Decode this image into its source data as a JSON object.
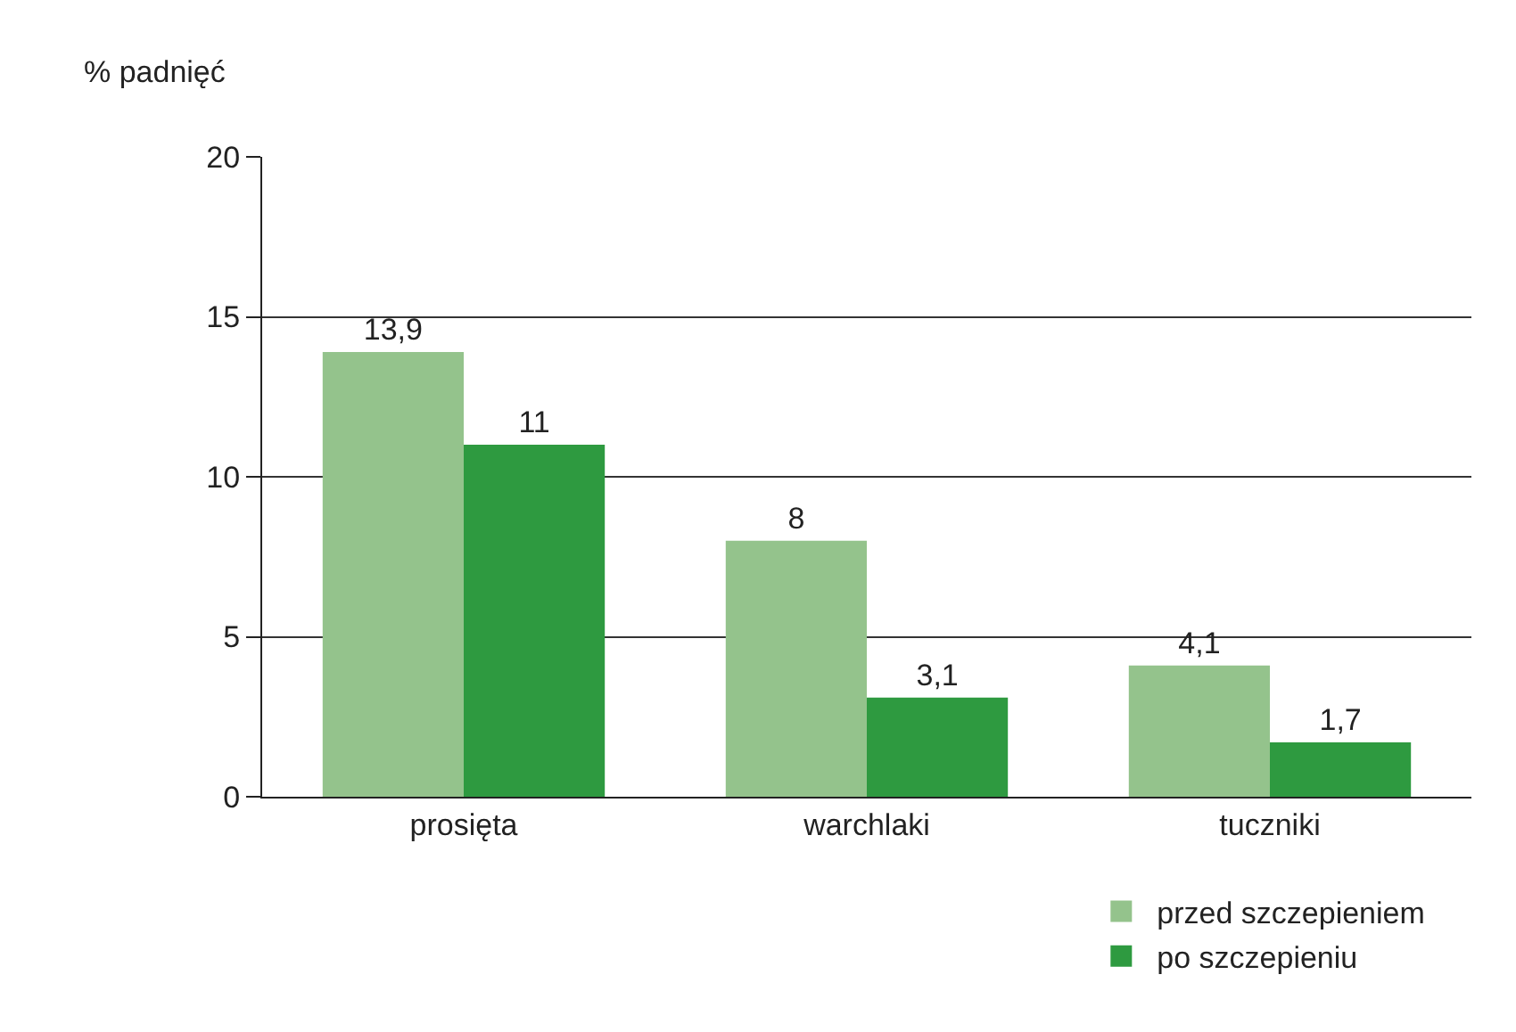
{
  "chart_data": {
    "type": "bar",
    "ylabel": "% padnięć",
    "categories": [
      "prosięta",
      "warchlaki",
      "tuczniki"
    ],
    "series": [
      {
        "name": "przed szczepieniem",
        "color": "#94c38c",
        "values": [
          13.9,
          8,
          4.1
        ],
        "value_labels": [
          "13,9",
          "8",
          "4,1"
        ]
      },
      {
        "name": "po szczepieniu",
        "color": "#2e9a40",
        "values": [
          11,
          3.1,
          1.7
        ],
        "value_labels": [
          "11",
          "3,1",
          "1,7"
        ]
      }
    ],
    "ylim": [
      0,
      20
    ],
    "yticks": [
      0,
      5,
      10,
      15,
      20
    ],
    "grid": "y",
    "legend": "bottom right"
  }
}
